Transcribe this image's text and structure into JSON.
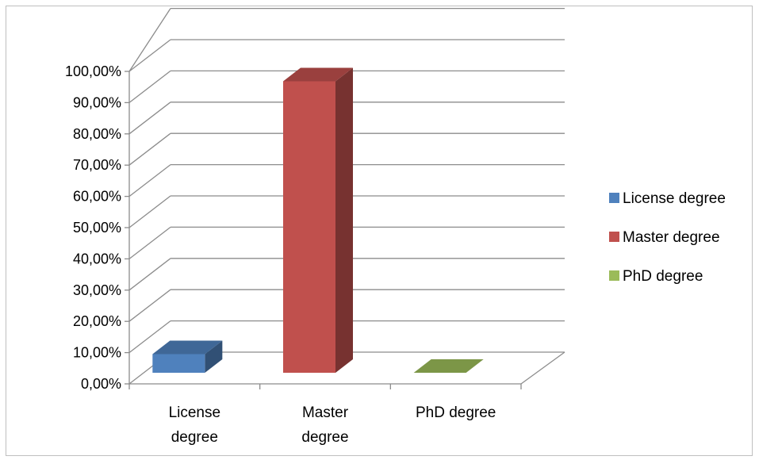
{
  "chart_data": {
    "type": "bar",
    "style": "3d-clustered-column",
    "categories": [
      "License degree",
      "Master degree",
      "PhD degree"
    ],
    "category_labels": [
      [
        "License",
        "degree"
      ],
      [
        "Master",
        "degree"
      ],
      [
        "PhD degree"
      ]
    ],
    "values": [
      0.06,
      0.94,
      0.0
    ],
    "colors": [
      "#4f81bd",
      "#c0504d",
      "#9bbb59"
    ],
    "legend": {
      "position": "right",
      "entries": [
        "License degree",
        "Master degree",
        "PhD degree"
      ]
    },
    "ylim": [
      0,
      1
    ],
    "yticks": [
      "0,00%",
      "10,00%",
      "20,00%",
      "30,00%",
      "40,00%",
      "50,00%",
      "60,00%",
      "70,00%",
      "80,00%",
      "90,00%",
      "100,00%"
    ],
    "grid": true,
    "title": "",
    "xlabel": "",
    "ylabel": ""
  }
}
